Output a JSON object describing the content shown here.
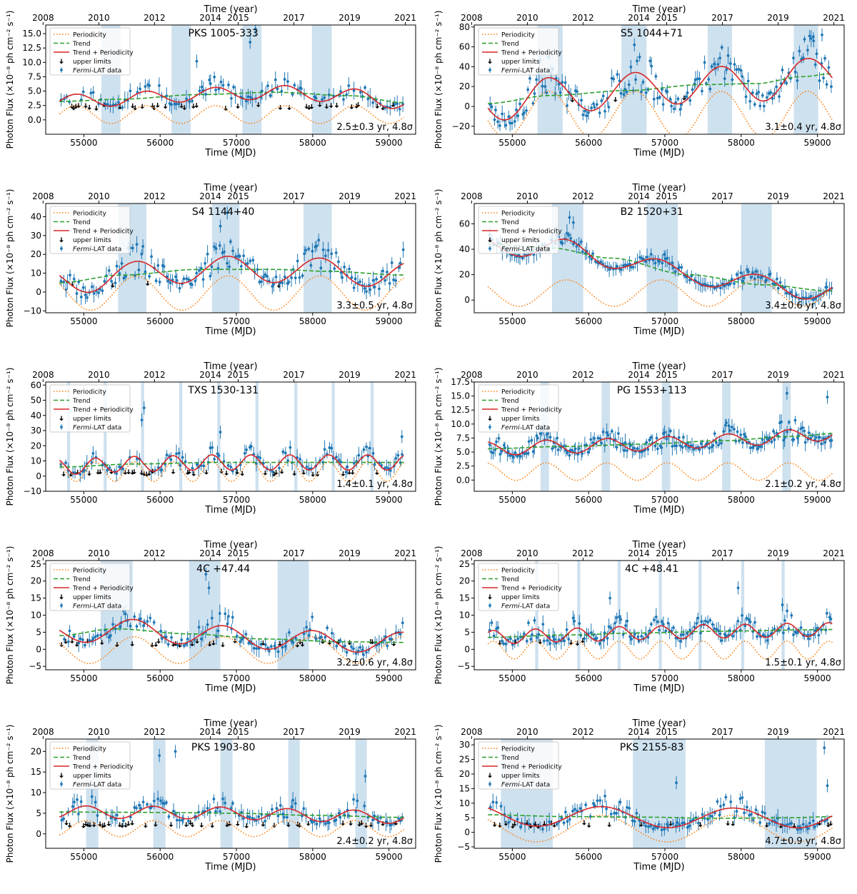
{
  "figure": {
    "colors": {
      "periodicity": "#ff7f0e",
      "trend": "#2ca02c",
      "trend_periodicity": "#d62728",
      "upper_limits": "#000000",
      "fermi_data": "#1f77b4",
      "shade": "#c6dcec"
    },
    "legend": {
      "periodicity": "Periodicity",
      "trend": "Trend",
      "trend_periodicity": "Trend + Periodicity",
      "upper_limits": "upper limits",
      "fermi_data_italic": "Fermi",
      "fermi_data_rest": "-LAT data"
    },
    "xlabel": "Time (MJD)",
    "top_xlabel": "Time (year)",
    "ylabel": "Photon Flux  (×10⁻⁸ ph cm⁻² s⁻¹)",
    "top_ticks": [
      {
        "label": "2008",
        "mjd": 54466
      },
      {
        "label": "2010",
        "mjd": 55197
      },
      {
        "label": "2012",
        "mjd": 55927
      },
      {
        "label": "2014",
        "mjd": 56658
      },
      {
        "label": "2015",
        "mjd": 57023
      },
      {
        "label": "2017",
        "mjd": 57754
      },
      {
        "label": "2019",
        "mjd": 58484
      },
      {
        "label": "2021",
        "mjd": 59215
      }
    ],
    "x_ticks": [
      55000,
      56000,
      57000,
      58000,
      59000
    ]
  },
  "chart_data": [
    {
      "type": "scatter",
      "source": "PKS 1005-333",
      "annotation": "2.5±0.3 yr, 4.8σ",
      "ylim": [
        -2.5,
        16.5
      ],
      "yticks": [
        "0.0",
        "2.5",
        "5.0",
        "7.5",
        "10.0",
        "12.5",
        "15.0"
      ],
      "ytick_values": [
        0,
        2.5,
        5,
        7.5,
        10,
        12.5,
        15
      ],
      "period_days": 913,
      "phase_mjd": 54900,
      "amplitude": 1.2,
      "periodicity_offset": 0,
      "trend": [
        [
          54680,
          3.2
        ],
        [
          55500,
          3.6
        ],
        [
          56500,
          4.4
        ],
        [
          57500,
          4.8
        ],
        [
          58500,
          4.2
        ],
        [
          59200,
          3.0
        ]
      ],
      "shaded_mjd": [
        [
          55230,
          55480
        ],
        [
          56150,
          56400
        ],
        [
          57080,
          57330
        ],
        [
          57990,
          58250
        ]
      ],
      "data_level": 3.0,
      "flare_scale": 4.5,
      "n_points": 140,
      "n_upper": 45,
      "seed": 11,
      "peaks": [
        [
          57180,
          13.5
        ],
        [
          57250,
          15.8
        ],
        [
          56480,
          10.2
        ]
      ]
    },
    {
      "type": "scatter",
      "source": "S5 1044+71",
      "annotation": "3.1±0.4 yr, 4.8σ",
      "ylim": [
        -28,
        82
      ],
      "yticks": [
        "−20",
        "0",
        "20",
        "40",
        "60",
        "80"
      ],
      "ytick_values": [
        -20,
        0,
        20,
        40,
        60,
        80
      ],
      "period_days": 1130,
      "phase_mjd": 54350,
      "amplitude": 18,
      "periodicity_offset": 0,
      "trend": [
        [
          54680,
          3
        ],
        [
          55500,
          11
        ],
        [
          56500,
          16
        ],
        [
          57500,
          22
        ],
        [
          58200,
          23
        ],
        [
          58800,
          30
        ],
        [
          59200,
          33
        ]
      ],
      "shaded_mjd": [
        [
          55330,
          55660
        ],
        [
          56430,
          56760
        ],
        [
          57560,
          57880
        ],
        [
          58690,
          59010
        ]
      ],
      "data_level": 6,
      "flare_scale": 55,
      "n_points": 170,
      "n_upper": 3,
      "seed": 23,
      "peaks": [
        [
          56600,
          62
        ],
        [
          59060,
          72
        ],
        [
          58950,
          66
        ]
      ]
    },
    {
      "type": "scatter",
      "source": "S4 1144+40",
      "annotation": "3.3±0.5 yr, 4.8σ",
      "ylim": [
        -11,
        47
      ],
      "yticks": [
        "−10",
        "0",
        "10",
        "20",
        "30",
        "40"
      ],
      "ytick_values": [
        -10,
        0,
        10,
        20,
        30,
        40
      ],
      "period_days": 1200,
      "phase_mjd": 54490,
      "amplitude": 7,
      "periodicity_offset": 0,
      "trend": [
        [
          54680,
          5
        ],
        [
          55500,
          9
        ],
        [
          56500,
          12
        ],
        [
          57500,
          12
        ],
        [
          58200,
          11
        ],
        [
          59200,
          9
        ]
      ],
      "shaded_mjd": [
        [
          55450,
          55820
        ],
        [
          56680,
          57040
        ],
        [
          57880,
          58250
        ]
      ],
      "data_level": 6,
      "flare_scale": 22,
      "n_points": 160,
      "n_upper": 4,
      "seed": 37,
      "peaks": [
        [
          56880,
          42
        ],
        [
          56790,
          35
        ]
      ]
    },
    {
      "type": "scatter",
      "source": "B2 1520+31",
      "annotation": "3.4±0.6 yr, 4.8σ",
      "ylim": [
        -10,
        76
      ],
      "yticks": [
        "0",
        "20",
        "40",
        "60"
      ],
      "ytick_values": [
        0,
        20,
        40,
        60
      ],
      "period_days": 1240,
      "phase_mjd": 54470,
      "amplitude": 8,
      "periodicity_offset": 0,
      "trend": [
        [
          54680,
          44
        ],
        [
          55500,
          41
        ],
        [
          56300,
          33
        ],
        [
          57300,
          20
        ],
        [
          58300,
          12
        ],
        [
          59200,
          7
        ]
      ],
      "shaded_mjd": [
        [
          55520,
          55930
        ],
        [
          56760,
          57170
        ],
        [
          58000,
          58400
        ]
      ],
      "data_level": 0,
      "flare_scale": 12,
      "n_points": 170,
      "n_upper": 0,
      "seed": 41,
      "peaks": [
        [
          55750,
          65
        ],
        [
          55800,
          61
        ]
      ]
    },
    {
      "type": "scatter",
      "source": "TXS 1530-131",
      "annotation": "1.4±0.1 yr, 4.8σ",
      "ylim": [
        -10,
        62
      ],
      "yticks": [
        "−10",
        "0",
        "10",
        "20",
        "30",
        "40",
        "50",
        "60"
      ],
      "ytick_values": [
        -10,
        0,
        10,
        20,
        30,
        40,
        50,
        60
      ],
      "period_days": 510,
      "phase_mjd": 54640,
      "amplitude": 5,
      "periodicity_offset": 0,
      "trend": [
        [
          54680,
          6
        ],
        [
          55700,
          8
        ],
        [
          56700,
          9
        ],
        [
          57700,
          9
        ],
        [
          59200,
          9
        ]
      ],
      "shaded_mjd": [
        [
          54780,
          54820
        ],
        [
          55260,
          55300
        ],
        [
          55750,
          55790
        ],
        [
          56250,
          56290
        ],
        [
          56750,
          56790
        ],
        [
          57250,
          57290
        ],
        [
          57760,
          57800
        ],
        [
          58250,
          58290
        ],
        [
          58760,
          58800
        ]
      ],
      "data_level": 3,
      "flare_scale": 14,
      "n_points": 150,
      "n_upper": 40,
      "seed": 53,
      "peaks": [
        [
          55790,
          45
        ],
        [
          55760,
          37
        ],
        [
          56790,
          29
        ],
        [
          59170,
          26
        ]
      ]
    },
    {
      "type": "scatter",
      "source": "PG 1553+113",
      "annotation": "2.1±0.2 yr, 4.8σ",
      "ylim": [
        -2,
        17.5
      ],
      "yticks": [
        "0.0",
        "2.5",
        "5.0",
        "7.5",
        "10.0",
        "12.5",
        "15.0",
        "17.5"
      ],
      "ytick_values": [
        0,
        2.5,
        5,
        7.5,
        10,
        12.5,
        15,
        17.5
      ],
      "period_days": 795,
      "phase_mjd": 54650,
      "amplitude": 1.2,
      "periodicity_offset": 0,
      "trend": [
        [
          54680,
          5.6
        ],
        [
          55700,
          6.0
        ],
        [
          56700,
          6.4
        ],
        [
          57700,
          7.0
        ],
        [
          58700,
          7.8
        ],
        [
          59200,
          8.3
        ]
      ],
      "shaded_mjd": [
        [
          55370,
          55480
        ],
        [
          56170,
          56280
        ],
        [
          56960,
          57070
        ],
        [
          57750,
          57860
        ],
        [
          58540,
          58650
        ]
      ],
      "data_level": 6,
      "flare_scale": 5,
      "n_points": 200,
      "n_upper": 0,
      "seed": 67,
      "peaks": [
        [
          58600,
          15.5
        ],
        [
          59130,
          14.8
        ]
      ]
    },
    {
      "type": "scatter",
      "source": "4C +47.44",
      "annotation": "3.2±0.6 yr, 4.8σ",
      "ylim": [
        -6,
        26
      ],
      "yticks": [
        "−5",
        "0",
        "5",
        "10",
        "15",
        "20",
        "25"
      ],
      "ytick_values": [
        -5,
        0,
        5,
        10,
        15,
        20,
        25
      ],
      "period_days": 1170,
      "phase_mjd": 54490,
      "amplitude": 3,
      "periodicity_offset": 0,
      "trend": [
        [
          54680,
          4
        ],
        [
          55400,
          6
        ],
        [
          56400,
          4.5
        ],
        [
          57400,
          3
        ],
        [
          58400,
          2.2
        ],
        [
          59200,
          2
        ]
      ],
      "shaded_mjd": [
        [
          55220,
          55640
        ],
        [
          56380,
          56790
        ],
        [
          57540,
          57950
        ]
      ],
      "data_level": 2.5,
      "flare_scale": 9,
      "n_points": 160,
      "n_upper": 35,
      "seed": 79,
      "peaks": [
        [
          56600,
          22
        ],
        [
          56640,
          18
        ]
      ]
    },
    {
      "type": "scatter",
      "source": "4C +48.41",
      "annotation": "1.5±0.1 yr, 4.8σ",
      "ylim": [
        -6,
        26
      ],
      "yticks": [
        "−5",
        "0",
        "5",
        "10",
        "15",
        "20",
        "25"
      ],
      "ytick_values": [
        -5,
        0,
        5,
        10,
        15,
        20,
        25
      ],
      "period_days": 550,
      "phase_mjd": 54750,
      "amplitude": 2,
      "periodicity_offset": 0,
      "trend": [
        [
          54680,
          3.5
        ],
        [
          55700,
          4.2
        ],
        [
          56700,
          4.8
        ],
        [
          57700,
          5.3
        ],
        [
          59200,
          5.8
        ]
      ],
      "shaded_mjd": [
        [
          55300,
          55340
        ],
        [
          55850,
          55890
        ],
        [
          56380,
          56420
        ],
        [
          56920,
          56960
        ],
        [
          57440,
          57480
        ],
        [
          58000,
          58040
        ],
        [
          58530,
          58570
        ]
      ],
      "data_level": 3,
      "flare_scale": 8,
      "n_points": 170,
      "n_upper": 6,
      "seed": 97,
      "peaks": [
        [
          57960,
          18
        ],
        [
          56280,
          15
        ],
        [
          58540,
          13
        ]
      ]
    },
    {
      "type": "scatter",
      "source": "PKS 1903-80",
      "annotation": "2.4±0.2 yr, 4.8σ",
      "ylim": [
        -3.5,
        23
      ],
      "yticks": [
        "0",
        "5",
        "10",
        "15",
        "20"
      ],
      "ytick_values": [
        0,
        5,
        10,
        15,
        20
      ],
      "period_days": 880,
      "phase_mjd": 55030,
      "amplitude": 1.5,
      "periodicity_offset": 0,
      "trend": [
        [
          54680,
          5.3
        ],
        [
          56000,
          5.2
        ],
        [
          57000,
          5.0
        ],
        [
          58000,
          4.5
        ],
        [
          59200,
          4.0
        ]
      ],
      "shaded_mjd": [
        [
          55030,
          55190
        ],
        [
          55910,
          56070
        ],
        [
          56790,
          56950
        ],
        [
          57680,
          57830
        ],
        [
          58560,
          58710
        ]
      ],
      "data_level": 3,
      "flare_scale": 6,
      "n_points": 160,
      "n_upper": 50,
      "seed": 101,
      "peaks": [
        [
          56200,
          20
        ],
        [
          55990,
          19
        ],
        [
          58690,
          14
        ]
      ]
    },
    {
      "type": "scatter",
      "source": "PKS 2155-83",
      "annotation": "4.7±0.9 yr, 4.8σ",
      "ylim": [
        -5.5,
        32
      ],
      "yticks": [
        "−5",
        "0",
        "5",
        "10",
        "15",
        "20",
        "25",
        "30"
      ],
      "ytick_values": [
        -5,
        0,
        5,
        10,
        15,
        20,
        25,
        30
      ],
      "period_days": 1720,
      "phase_mjd": 54450,
      "amplitude": 3.5,
      "periodicity_offset": 0,
      "trend": [
        [
          54680,
          6
        ],
        [
          55700,
          5.4
        ],
        [
          56700,
          5.2
        ],
        [
          57700,
          4.8
        ],
        [
          58700,
          5
        ],
        [
          59200,
          5.4
        ]
      ],
      "shaded_mjd": [
        [
          54850,
          55530
        ],
        [
          56580,
          57270
        ],
        [
          58310,
          58990
        ]
      ],
      "data_level": 3.5,
      "flare_scale": 9,
      "n_points": 150,
      "n_upper": 30,
      "seed": 113,
      "peaks": [
        [
          59090,
          29
        ],
        [
          59130,
          16
        ],
        [
          57150,
          17
        ]
      ]
    }
  ]
}
